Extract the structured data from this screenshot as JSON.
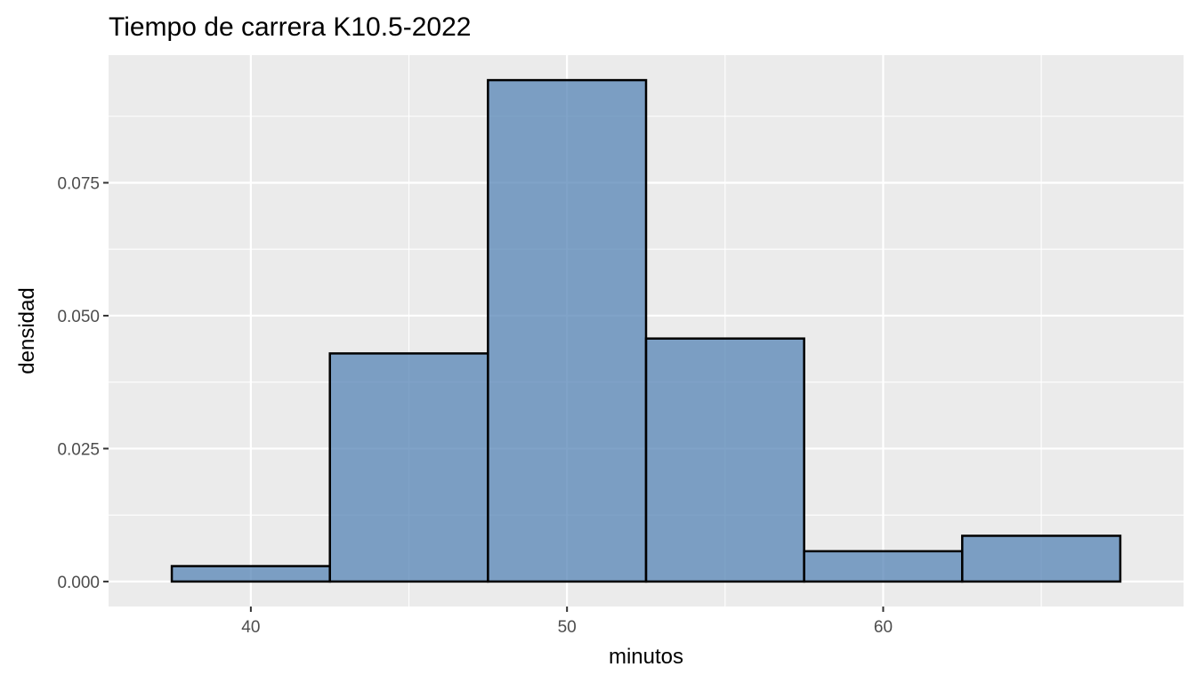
{
  "chart_data": {
    "type": "histogram",
    "title": "Tiempo de carrera  K10.5-2022",
    "xlabel": "minutos",
    "ylabel": "densidad",
    "bins": [
      {
        "start": 37.5,
        "end": 42.5,
        "density": 0.0029
      },
      {
        "start": 42.5,
        "end": 47.5,
        "density": 0.0429
      },
      {
        "start": 47.5,
        "end": 52.5,
        "density": 0.0943
      },
      {
        "start": 52.5,
        "end": 57.5,
        "density": 0.0457
      },
      {
        "start": 57.5,
        "end": 62.5,
        "density": 0.0057
      },
      {
        "start": 62.5,
        "end": 67.5,
        "density": 0.0086
      }
    ],
    "xlim": [
      35.5,
      69.5
    ],
    "ylim": [
      -0.0047,
      0.099
    ],
    "x_ticks": [
      40,
      50,
      60
    ],
    "x_tick_labels": [
      "40",
      "50",
      "60"
    ],
    "x_minor_ticks": [
      45,
      55,
      65
    ],
    "y_ticks": [
      0,
      0.025,
      0.05,
      0.075
    ],
    "y_tick_labels": [
      "0.000",
      "0.025",
      "0.050",
      "0.075"
    ],
    "y_minor_ticks": [
      0.0125,
      0.0375,
      0.0625,
      0.0875
    ],
    "grid": true,
    "colors": {
      "bar_fill": "#4f7fb3",
      "bar_outline": "#000000",
      "panel_background": "#ebebeb",
      "grid": "#ffffff"
    }
  }
}
